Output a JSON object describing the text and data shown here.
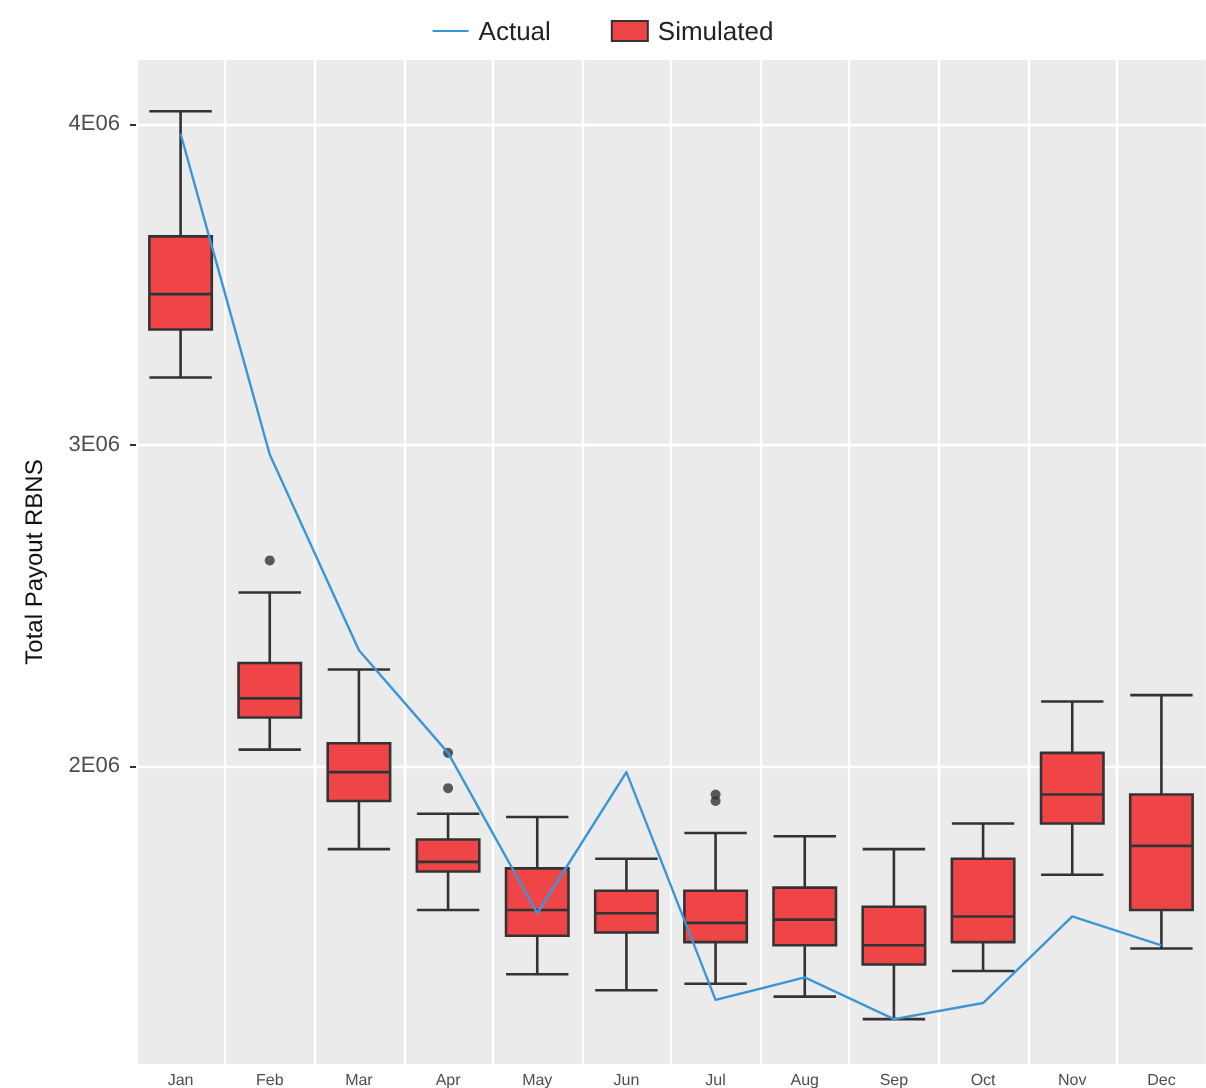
{
  "chart_data": {
    "type": "box",
    "ylabel": "Total Payout RBNS",
    "categories": [
      "Jan",
      "Feb",
      "Mar",
      "Apr",
      "May",
      "Jun",
      "Jul",
      "Aug",
      "Sep",
      "Oct",
      "Nov",
      "Dec"
    ],
    "ylim": [
      1070000,
      4200000
    ],
    "yticks": [
      {
        "value": 2000000,
        "label": "2E06"
      },
      {
        "value": 3000000,
        "label": "3E06"
      },
      {
        "value": 4000000,
        "label": "4E06"
      }
    ],
    "grid": true,
    "legend": "top",
    "series": [
      {
        "name": "Actual",
        "type": "line",
        "color": "#3a96d6",
        "marker": "none",
        "values": [
          3970000,
          2970000,
          2360000,
          2040000,
          1540000,
          1980000,
          1270000,
          1340000,
          1210000,
          1260000,
          1530000,
          1440000
        ]
      },
      {
        "name": "Simulated",
        "type": "box",
        "color": "#f04546",
        "boxes": [
          {
            "low": 3210000,
            "q1": 3360000,
            "median": 3470000,
            "q3": 3650000,
            "high": 4040000
          },
          {
            "low": 2050000,
            "q1": 2150000,
            "median": 2210000,
            "q3": 2320000,
            "high": 2540000,
            "outliers": [
              2640000
            ]
          },
          {
            "low": 1740000,
            "q1": 1890000,
            "median": 1980000,
            "q3": 2070000,
            "high": 2300000
          },
          {
            "low": 1550000,
            "q1": 1670000,
            "median": 1700000,
            "q3": 1770000,
            "high": 1850000,
            "outliers": [
              2040000,
              1930000
            ]
          },
          {
            "low": 1350000,
            "q1": 1470000,
            "median": 1550000,
            "q3": 1680000,
            "high": 1840000
          },
          {
            "low": 1300000,
            "q1": 1480000,
            "median": 1540000,
            "q3": 1610000,
            "high": 1710000
          },
          {
            "low": 1320000,
            "q1": 1450000,
            "median": 1510000,
            "q3": 1610000,
            "high": 1790000,
            "outliers": [
              1910000,
              1890000
            ]
          },
          {
            "low": 1280000,
            "q1": 1440000,
            "median": 1520000,
            "q3": 1620000,
            "high": 1780000
          },
          {
            "low": 1210000,
            "q1": 1380000,
            "median": 1440000,
            "q3": 1560000,
            "high": 1740000
          },
          {
            "low": 1360000,
            "q1": 1450000,
            "median": 1530000,
            "q3": 1710000,
            "high": 1820000
          },
          {
            "low": 1660000,
            "q1": 1820000,
            "median": 1910000,
            "q3": 2040000,
            "high": 2200000
          },
          {
            "low": 1430000,
            "q1": 1550000,
            "median": 1750000,
            "q3": 1910000,
            "high": 2220000
          }
        ]
      }
    ]
  }
}
